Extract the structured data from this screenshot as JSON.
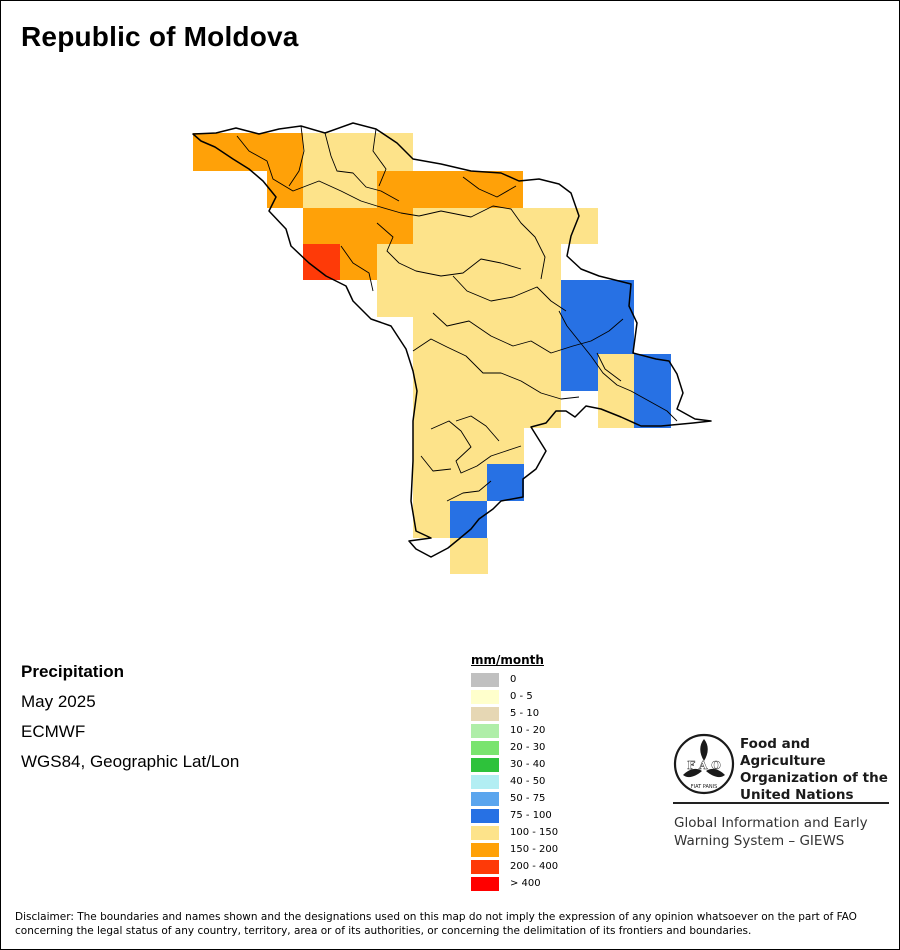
{
  "map": {
    "title": "Republic of Moldova",
    "country": "Republic of Moldova",
    "variable": "Precipitation",
    "period": "May 2025",
    "source": "ECMWF",
    "projection": "WGS84, Geographic Lat/Lon",
    "colors": {
      "100-150": "#fde38a",
      "150-200": "#ffa108",
      "200-400": "#fe3a08",
      "75-100": "#2771e4"
    }
  },
  "legend": {
    "unit": "mm/month",
    "classes": [
      {
        "label": "0",
        "color": "#c0c0c0"
      },
      {
        "label": "0 - 5",
        "color": "#ffffcc"
      },
      {
        "label": "5 - 10",
        "color": "#e6d7b4"
      },
      {
        "label": "10 - 20",
        "color": "#afeea8"
      },
      {
        "label": "20 - 30",
        "color": "#7ae46f"
      },
      {
        "label": "30 - 40",
        "color": "#2ec23b"
      },
      {
        "label": "40 - 50",
        "color": "#b2eef3"
      },
      {
        "label": "50 - 75",
        "color": "#5aa5ee"
      },
      {
        "label": "75 - 100",
        "color": "#2771e4"
      },
      {
        "label": "100 - 150",
        "color": "#fde38a"
      },
      {
        "label": "150 - 200",
        "color": "#ffa108"
      },
      {
        "label": "200 - 400",
        "color": "#fe3a08"
      },
      {
        "label": "> 400",
        "color": "#ff0000"
      }
    ]
  },
  "logo": {
    "acronym": "FAO",
    "motto": "FIAT PANIS",
    "org_line1": "Food and Agriculture",
    "org_line2": "Organization of the",
    "org_line3": "United Nations",
    "giews_line1": "Global Information and Early",
    "giews_line2": "Warning System – GIEWS"
  },
  "disclaimer": "Disclaimer: The boundaries and names shown and the designations used on this map do not imply the expression of any opinion whatsoever on the part of FAO concerning the legal status of any country, territory, area or of its authorities, or concerning the delimitation of its frontiers and boundaries."
}
